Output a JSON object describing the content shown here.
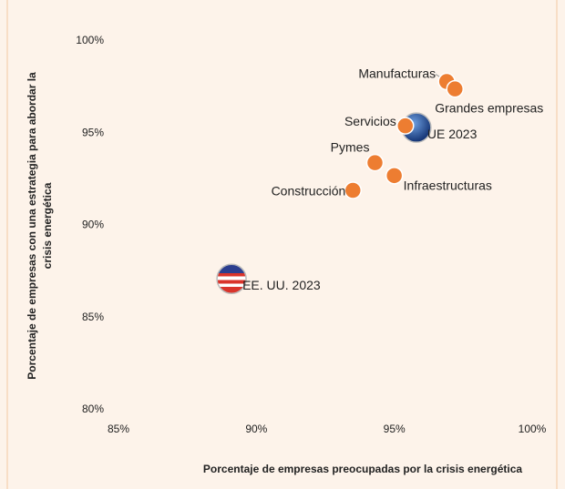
{
  "chart_data": {
    "type": "scatter",
    "x_label": "Porcentaje de empresas preocupadas por la crisis energética",
    "y_label": [
      "Porcentaje de empresas con una estrategia para abordar la",
      "crisis energética"
    ],
    "points": [
      {
        "label": "Manufacturas",
        "x": 96.9,
        "y": 97.8,
        "color": "#ed7d31"
      },
      {
        "label": "Grandes empresas",
        "x": 97.2,
        "y": 97.4,
        "color": "#ed7d31"
      },
      {
        "label": "UE 2023",
        "x": 95.8,
        "y": 95.3,
        "color": "#1f3f8f"
      },
      {
        "label": "Servicios",
        "x": 95.4,
        "y": 95.4,
        "color": "#ed7d31"
      },
      {
        "label": "Pymes",
        "x": 94.3,
        "y": 93.4,
        "color": "#ed7d31"
      },
      {
        "label": "Infraestructuras",
        "x": 95.0,
        "y": 92.7,
        "color": "#ed7d31"
      },
      {
        "label": "Construcción",
        "x": 93.5,
        "y": 91.9,
        "color": "#ed7d31"
      },
      {
        "label": "EE. UU. 2023",
        "x": 89.1,
        "y": 87.1,
        "color": "#c0392b"
      }
    ],
    "xlim": [
      85,
      100
    ],
    "xticks": [
      {
        "value": 85,
        "label": "85%"
      },
      {
        "value": 90,
        "label": "90%"
      },
      {
        "value": 95,
        "label": "95%"
      },
      {
        "value": 100,
        "label": "100%"
      }
    ],
    "ylim": [
      80,
      100
    ],
    "yticks": [
      {
        "value": 80,
        "label": "80%"
      },
      {
        "value": 85,
        "label": "85%"
      },
      {
        "value": 90,
        "label": "90%"
      },
      {
        "value": 95,
        "label": "95%"
      },
      {
        "value": 100,
        "label": "100%"
      }
    ]
  }
}
